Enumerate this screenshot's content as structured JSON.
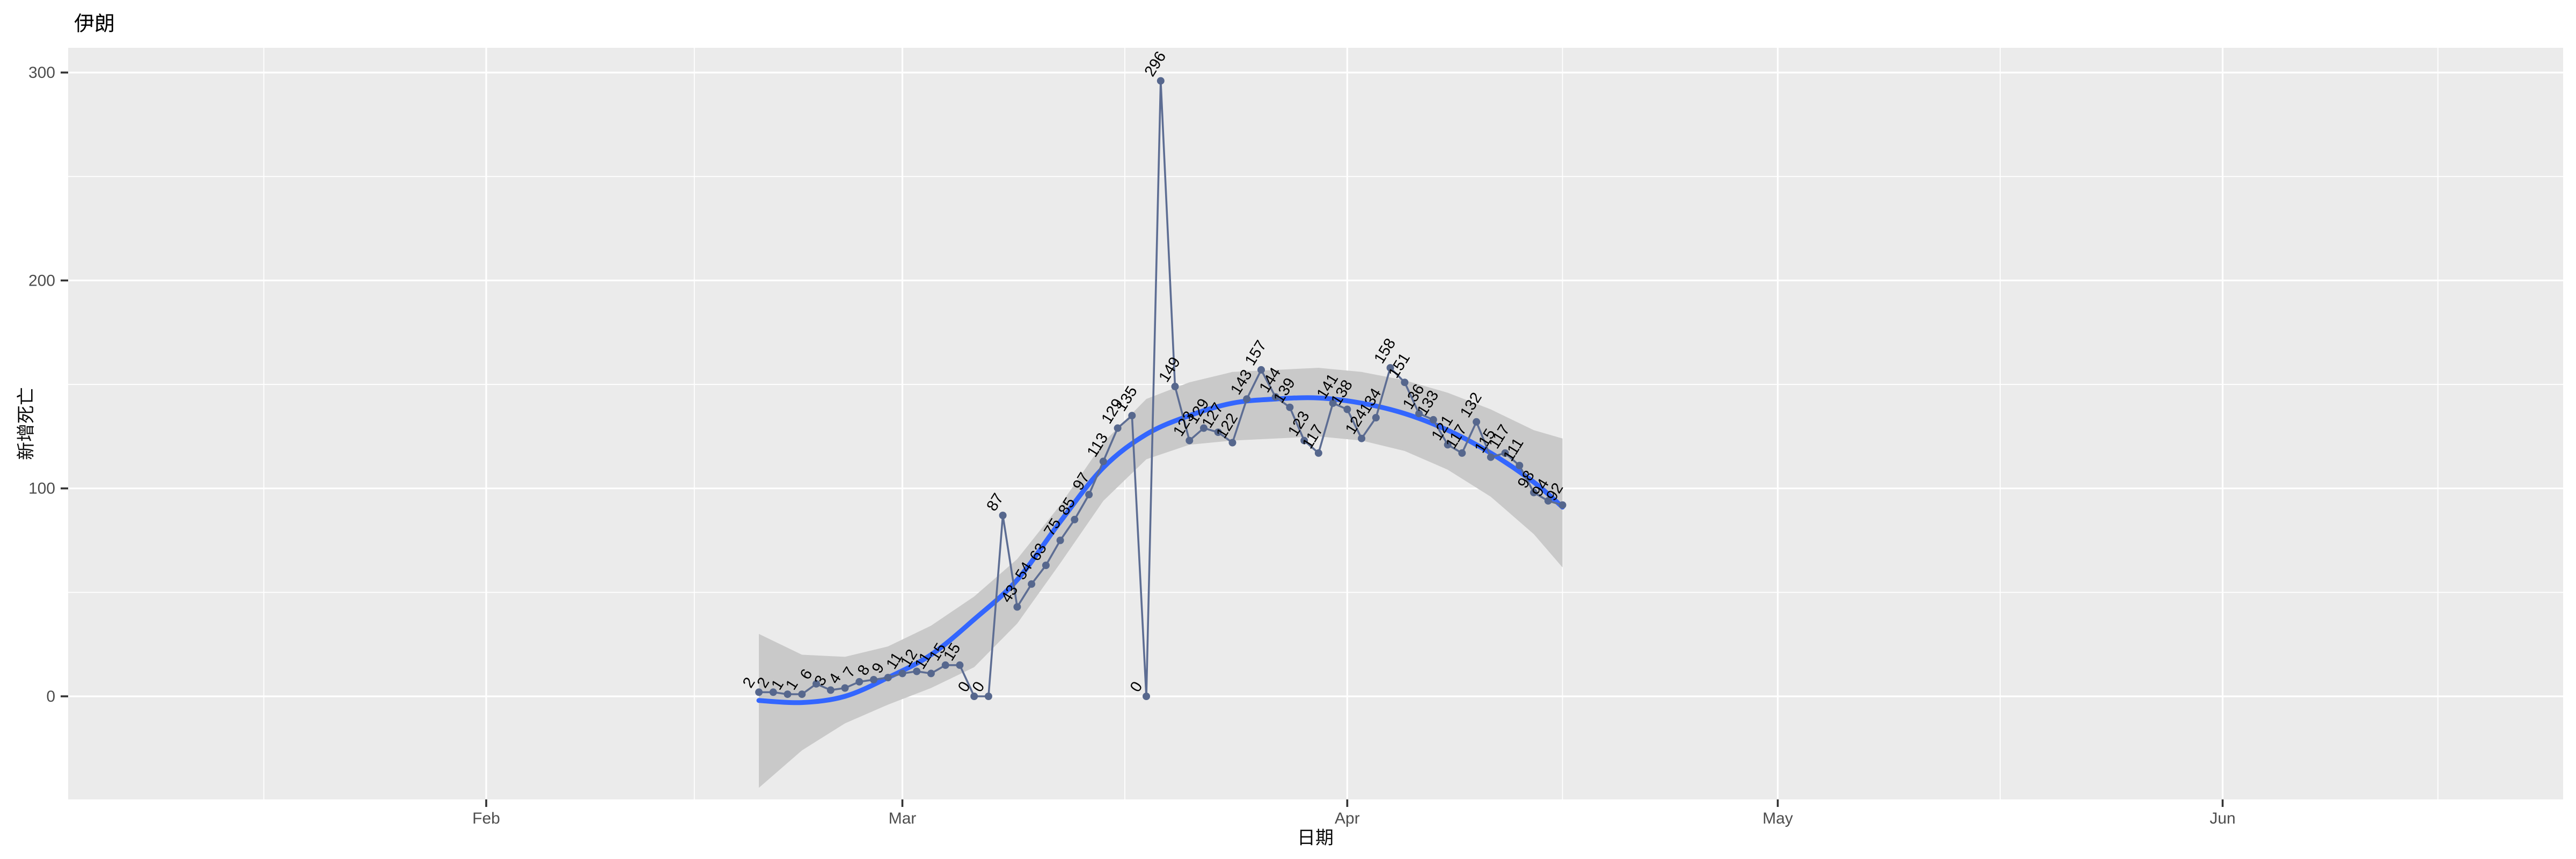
{
  "title": "伊朗",
  "axes": {
    "x": {
      "label": "日期",
      "ticks": [
        "Feb",
        "Mar",
        "Apr",
        "May",
        "Jun"
      ]
    },
    "y": {
      "label": "新增死亡",
      "ticks": [
        "0",
        "100",
        "200",
        "300"
      ]
    }
  },
  "colors": {
    "outer_background": "#FFFFFF",
    "panel_background": "#EBEBEB",
    "gridline": "#FFFFFF",
    "ribbon": "#C9C9C9",
    "smooth_line": "#3366FF",
    "data_line": "#5D6D93",
    "data_point": "#56678D",
    "label_text": "#000000",
    "axis_text": "#4D4D4D",
    "tick_mark": "#333333",
    "title_text": "#000000"
  },
  "chart_data": {
    "type": "line",
    "title": "伊朗",
    "xlabel": "日期",
    "ylabel": "新增死亡",
    "grid": true,
    "legend": false,
    "x_axis": {
      "unit": "day_offset_from_Feb_1",
      "major_tick_days": [
        0,
        29,
        60,
        90,
        121
      ],
      "major_tick_labels": [
        "Feb",
        "Mar",
        "Apr",
        "May",
        "Jun"
      ],
      "minor_tick_days": [
        -15.5,
        14.5,
        44.5,
        75,
        105.5,
        136
      ]
    },
    "y_axis": {
      "major_ticks": [
        0,
        100,
        200,
        300
      ],
      "major_tick_labels": [
        "0",
        "100",
        "200",
        "300"
      ],
      "minor_ticks": [
        50,
        150,
        250
      ],
      "range_shown": [
        -50,
        312
      ]
    },
    "daily_new_deaths": {
      "first_point_day": 19,
      "values": [
        2,
        2,
        1,
        1,
        6,
        3,
        4,
        7,
        8,
        9,
        11,
        12,
        11,
        15,
        15,
        0,
        0,
        87,
        43,
        54,
        63,
        75,
        85,
        97,
        113,
        129,
        135,
        0,
        296,
        149,
        123,
        129,
        127,
        122,
        143,
        157,
        144,
        139,
        123,
        117,
        141,
        138,
        124,
        134,
        158,
        151,
        136,
        133,
        121,
        117,
        132,
        115,
        117,
        111,
        98,
        94,
        92
      ]
    },
    "smooth_trend": {
      "days": [
        19,
        22,
        25,
        28,
        31,
        34,
        37,
        40,
        43,
        46,
        49,
        52,
        55,
        58,
        61,
        64,
        67,
        70,
        73,
        75
      ],
      "values": [
        -2,
        -3,
        0,
        9,
        20,
        37,
        56,
        84,
        110,
        126,
        135,
        141,
        143,
        143.5,
        141,
        136,
        128,
        117,
        103,
        91
      ],
      "ci_upper": [
        30,
        20,
        19,
        24,
        34,
        48,
        66,
        92,
        122,
        143,
        151,
        156,
        157,
        158,
        156,
        152,
        146,
        138,
        128,
        124
      ],
      "ci_lower": [
        -44,
        -26,
        -13,
        -4,
        4,
        14,
        35,
        64,
        94,
        114,
        121,
        123,
        124,
        125,
        123,
        118,
        109,
        96,
        78,
        62
      ]
    }
  }
}
